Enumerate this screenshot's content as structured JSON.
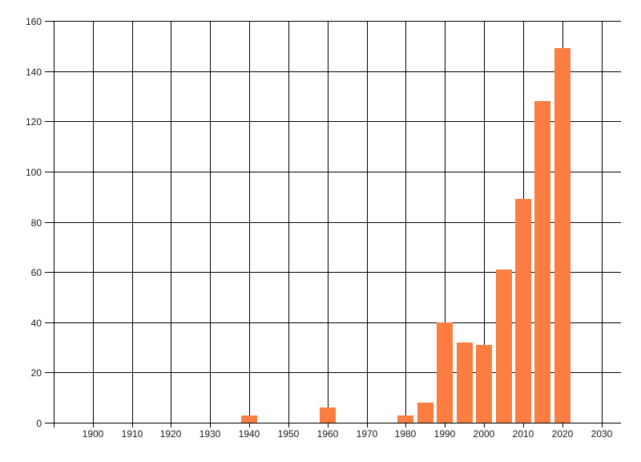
{
  "chart_data": {
    "type": "bar",
    "title": "",
    "xlabel": "",
    "ylabel": "",
    "categories": [
      1940,
      1960,
      1980,
      1985,
      1990,
      1995,
      2000,
      2005,
      2010,
      2015,
      2020
    ],
    "values": [
      3,
      6,
      3,
      8,
      40,
      32,
      31,
      61,
      89,
      128,
      149
    ],
    "xlim": [
      1890,
      2035
    ],
    "ylim": [
      0,
      160
    ],
    "x_ticks": [
      1900,
      1910,
      1920,
      1930,
      1940,
      1950,
      1960,
      1970,
      1980,
      1990,
      2000,
      2010,
      2020,
      2030
    ],
    "y_ticks": [
      0,
      20,
      40,
      60,
      80,
      100,
      120,
      140,
      160
    ],
    "grid": true,
    "legend": "none",
    "bar_color": "#FB7D41",
    "grid_color": "#000000",
    "label_color": "#1a1a1a",
    "background_color": "#ffffff"
  }
}
